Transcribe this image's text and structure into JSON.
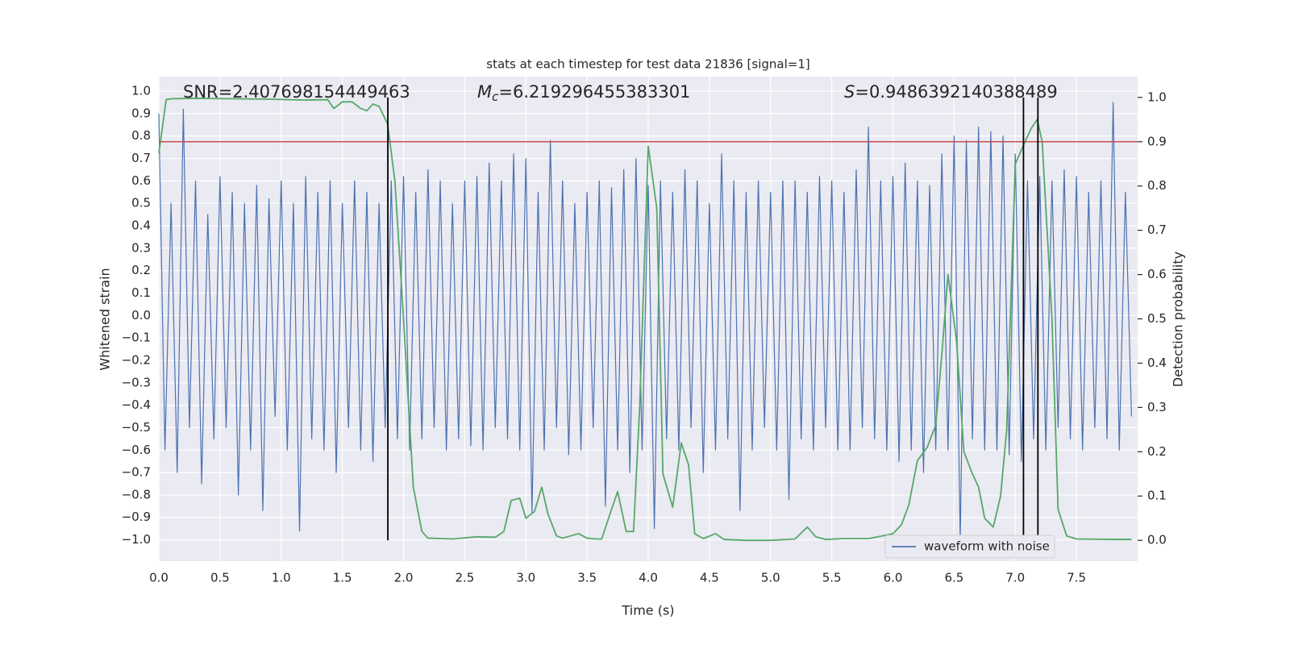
{
  "chart_data": {
    "type": "line",
    "title": "stats at each timestep for test data 21836 [signal=1]",
    "xlabel": "Time (s)",
    "ylabel": "Whitened strain",
    "y2label": "Detection probability",
    "xlim": [
      0,
      8
    ],
    "ylim": [
      -1.095,
      1.065
    ],
    "y2lim": [
      -0.047,
      1.047
    ],
    "xticks": [
      {
        "value": 0,
        "label": "0.0"
      },
      0.5,
      {
        "value": 1,
        "label": "1.0"
      },
      1.5,
      {
        "value": 2,
        "label": "2.0"
      },
      2.5,
      {
        "value": 3,
        "label": "3.0"
      },
      3.5,
      {
        "value": 4,
        "label": "4.0"
      },
      4.5,
      {
        "value": 5,
        "label": "5.0"
      },
      5.5,
      {
        "value": 6,
        "label": "6.0"
      },
      6.5,
      {
        "value": 7,
        "label": "7.0"
      },
      7.5
    ],
    "yticks": [
      {
        "value": -1,
        "label": "−1.0"
      },
      {
        "value": -0.9,
        "label": "−0.9"
      },
      {
        "value": -0.8,
        "label": "−0.8"
      },
      {
        "value": -0.7,
        "label": "−0.7"
      },
      {
        "value": -0.6,
        "label": "−0.6"
      },
      {
        "value": -0.5,
        "label": "−0.5"
      },
      {
        "value": -0.4,
        "label": "−0.4"
      },
      {
        "value": -0.3,
        "label": "−0.3"
      },
      {
        "value": -0.2,
        "label": "−0.2"
      },
      {
        "value": -0.1,
        "label": "−0.1"
      },
      {
        "value": 0,
        "label": "0.0"
      },
      0.1,
      0.2,
      0.3,
      0.4,
      0.5,
      0.6,
      0.7,
      0.8,
      0.9,
      {
        "value": 1,
        "label": "1.0"
      }
    ],
    "y2ticks": [
      {
        "value": 0,
        "label": "0.0"
      },
      0.1,
      0.2,
      0.3,
      0.4,
      0.5,
      0.6,
      0.7,
      0.8,
      0.9,
      {
        "value": 1,
        "label": "1.0"
      }
    ],
    "grid": true,
    "legend_loc": "lower right",
    "series": [
      {
        "name": "waveform with noise",
        "color": "#4c72b0",
        "x": [
          0,
          0.05,
          0.1,
          0.15,
          0.2,
          0.25,
          0.3,
          0.35,
          0.4,
          0.45,
          0.5,
          0.55,
          0.6,
          0.65,
          0.7,
          0.75,
          0.8,
          0.85,
          0.9,
          0.95,
          1,
          1.05,
          1.1,
          1.15,
          1.2,
          1.25,
          1.3,
          1.35,
          1.4,
          1.45,
          1.5,
          1.55,
          1.6,
          1.65,
          1.7,
          1.75,
          1.8,
          1.85,
          1.9,
          1.95,
          2,
          2.05,
          2.1,
          2.15,
          2.2,
          2.25,
          2.3,
          2.35,
          2.4,
          2.45,
          2.5,
          2.55,
          2.6,
          2.65,
          2.7,
          2.75,
          2.8,
          2.85,
          2.9,
          2.95,
          3,
          3.05,
          3.1,
          3.15,
          3.2,
          3.25,
          3.3,
          3.35,
          3.4,
          3.45,
          3.5,
          3.55,
          3.6,
          3.65,
          3.7,
          3.75,
          3.8,
          3.85,
          3.9,
          3.95,
          4,
          4.05,
          4.1,
          4.15,
          4.2,
          4.25,
          4.3,
          4.35,
          4.4,
          4.45,
          4.5,
          4.55,
          4.6,
          4.65,
          4.7,
          4.75,
          4.8,
          4.85,
          4.9,
          4.95,
          5,
          5.05,
          5.1,
          5.15,
          5.2,
          5.25,
          5.3,
          5.35,
          5.4,
          5.45,
          5.5,
          5.55,
          5.6,
          5.65,
          5.7,
          5.75,
          5.8,
          5.85,
          5.9,
          5.95,
          6,
          6.05,
          6.1,
          6.15,
          6.2,
          6.25,
          6.3,
          6.35,
          6.4,
          6.45,
          6.5,
          6.55,
          6.6,
          6.65,
          6.7,
          6.75,
          6.8,
          6.85,
          6.9,
          6.95,
          7,
          7.05,
          7.1,
          7.15,
          7.2,
          7.25,
          7.3,
          7.35,
          7.4,
          7.45,
          7.5,
          7.55,
          7.6,
          7.65,
          7.7,
          7.75,
          7.8,
          7.85,
          7.9,
          7.95
        ],
        "values": [
          0.9,
          -0.6,
          0.5,
          -0.7,
          0.92,
          -0.5,
          0.6,
          -0.75,
          0.45,
          -0.55,
          0.62,
          -0.5,
          0.55,
          -0.8,
          0.5,
          -0.6,
          0.58,
          -0.87,
          0.52,
          -0.45,
          0.6,
          -0.6,
          0.5,
          -0.96,
          0.62,
          -0.55,
          0.55,
          -0.6,
          0.6,
          -0.7,
          0.5,
          -0.5,
          0.6,
          -0.6,
          0.55,
          -0.65,
          0.5,
          -0.5,
          0.6,
          -0.55,
          0.62,
          -0.6,
          0.55,
          -0.55,
          0.65,
          -0.5,
          0.6,
          -0.6,
          0.5,
          -0.55,
          0.6,
          -0.58,
          0.62,
          -0.6,
          0.68,
          -0.5,
          0.6,
          -0.55,
          0.72,
          -0.6,
          0.7,
          -0.88,
          0.55,
          -0.6,
          0.78,
          -0.5,
          0.6,
          -0.62,
          0.5,
          -0.6,
          0.55,
          -0.5,
          0.6,
          -0.85,
          0.57,
          -0.6,
          0.65,
          -0.7,
          0.7,
          -0.6,
          0.58,
          -0.95,
          0.6,
          -0.55,
          0.55,
          -0.6,
          0.65,
          -0.5,
          0.6,
          -0.7,
          0.5,
          -0.6,
          0.72,
          -0.55,
          0.6,
          -0.87,
          0.55,
          -0.6,
          0.6,
          -0.5,
          0.55,
          -0.6,
          0.6,
          -0.82,
          0.6,
          -0.55,
          0.55,
          -0.6,
          0.62,
          -0.5,
          0.6,
          -0.6,
          0.55,
          -0.6,
          0.65,
          -0.5,
          0.84,
          -0.55,
          0.6,
          -0.6,
          0.62,
          -0.65,
          0.68,
          -0.6,
          0.6,
          -0.7,
          0.58,
          -0.6,
          0.72,
          -0.6,
          0.8,
          -1.0,
          0.78,
          -0.55,
          0.84,
          -0.6,
          0.82,
          -0.6,
          0.8,
          -0.62,
          0.72,
          -0.65,
          0.6,
          -0.55,
          0.62,
          -0.6,
          0.6,
          -0.5,
          0.65,
          -0.55,
          0.62,
          -0.6,
          0.55,
          -0.5,
          0.6,
          -0.55,
          0.95,
          -0.6,
          0.55,
          -0.45
        ]
      },
      {
        "color": "#55a868",
        "axis": "y2",
        "x": [
          0,
          0.06,
          0.1,
          0.3,
          0.6,
          0.9,
          1.2,
          1.38,
          1.43,
          1.5,
          1.58,
          1.65,
          1.7,
          1.75,
          1.8,
          1.87,
          1.93,
          2,
          2.08,
          2.15,
          2.2,
          2.4,
          2.6,
          2.75,
          2.82,
          2.88,
          2.95,
          3,
          3.07,
          3.13,
          3.18,
          3.25,
          3.3,
          3.43,
          3.5,
          3.57,
          3.62,
          3.7,
          3.75,
          3.82,
          3.88,
          3.93,
          4,
          4.07,
          4.12,
          4.2,
          4.27,
          4.33,
          4.38,
          4.45,
          4.55,
          4.62,
          4.8,
          5,
          5.2,
          5.3,
          5.37,
          5.45,
          5.6,
          5.8,
          5.95,
          6,
          6.07,
          6.13,
          6.2,
          6.28,
          6.35,
          6.4,
          6.45,
          6.52,
          6.58,
          6.65,
          6.7,
          6.75,
          6.82,
          6.88,
          6.93,
          7,
          7.08,
          7.13,
          7.18,
          7.22,
          7.3,
          7.35,
          7.42,
          7.5,
          7.8,
          7.95
        ],
        "values": [
          0.874,
          0.995,
          0.997,
          0.998,
          0.997,
          0.996,
          0.994,
          0.995,
          0.975,
          0.99,
          0.99,
          0.975,
          0.97,
          0.985,
          0.98,
          0.94,
          0.81,
          0.5,
          0.12,
          0.02,
          0.005,
          0.003,
          0.008,
          0.007,
          0.02,
          0.09,
          0.095,
          0.05,
          0.065,
          0.12,
          0.06,
          0.01,
          0.005,
          0.015,
          0.005,
          0.003,
          0.003,
          0.07,
          0.11,
          0.02,
          0.02,
          0.3,
          0.89,
          0.75,
          0.15,
          0.075,
          0.22,
          0.17,
          0.015,
          0.004,
          0.015,
          0.002,
          0.0,
          0.0,
          0.003,
          0.03,
          0.008,
          0.002,
          0.004,
          0.004,
          0.012,
          0.015,
          0.035,
          0.08,
          0.18,
          0.21,
          0.26,
          0.42,
          0.6,
          0.45,
          0.2,
          0.15,
          0.12,
          0.05,
          0.03,
          0.1,
          0.25,
          0.85,
          0.9,
          0.93,
          0.95,
          0.9,
          0.5,
          0.07,
          0.01,
          0.003,
          0.002,
          0.002
        ]
      }
    ],
    "vlines": {
      "x": [
        1.872,
        7.067,
        7.185
      ],
      "color": "#000000"
    },
    "hline": {
      "y2": 0.9,
      "color": "#c44e52"
    },
    "annotations": [
      {
        "text": "SNR=2.407698154449463"
      },
      {
        "symbol": "M",
        "subscript": "c",
        "text": "=6.219296455383301"
      },
      {
        "symbol": "S",
        "text": "=0.9486392140388489"
      }
    ]
  }
}
